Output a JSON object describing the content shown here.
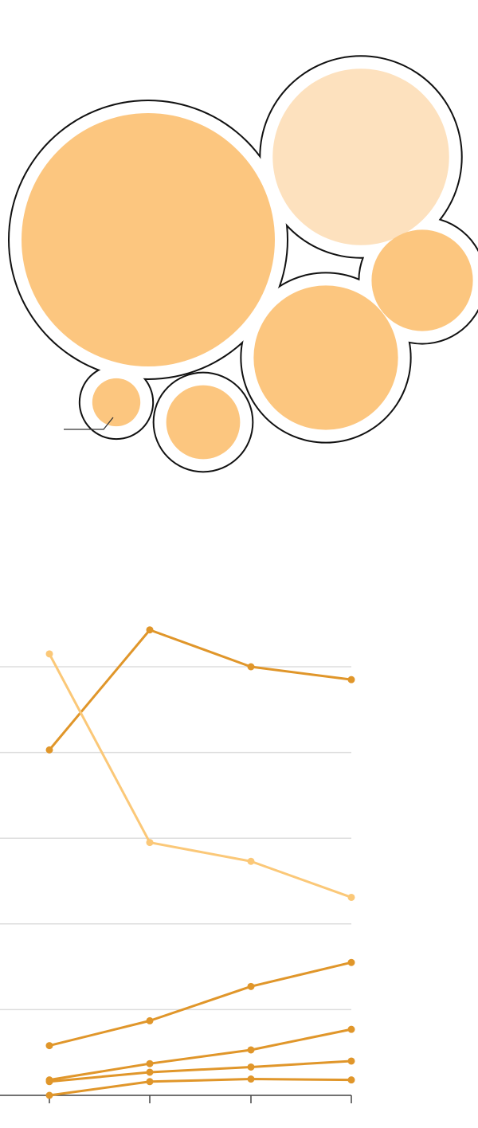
{
  "colors": {
    "bubble_main": "#FCC67F",
    "bubble_light": "#FDE1BE",
    "line_dark": "#E0962A",
    "line_light": "#FBC878",
    "outline": "#111111",
    "grid": "#DDDDDD",
    "axis": "#444444"
  },
  "chart_data": [
    {
      "type": "bubble",
      "title": "",
      "bubbles": [
        {
          "value": 100,
          "shade": "main"
        },
        {
          "value": 48.5,
          "shade": "light"
        },
        {
          "value": 32.5,
          "shade": "main"
        },
        {
          "value": 16,
          "shade": "main"
        },
        {
          "value": 8.5,
          "shade": "main"
        },
        {
          "value": 3.6,
          "shade": "main",
          "has_callout": true
        }
      ]
    },
    {
      "type": "line",
      "title": "",
      "xlabel": "",
      "ylabel": "",
      "categories": [
        "",
        "",
        "",
        ""
      ],
      "ylim": [
        0,
        5
      ],
      "grid": true,
      "series": [
        {
          "values": [
            4.03,
            5.43,
            5.0,
            4.85
          ],
          "shade": "dark"
        },
        {
          "values": [
            5.15,
            2.95,
            2.73,
            2.31
          ],
          "shade": "light"
        },
        {
          "values": [
            0.58,
            0.87,
            1.27,
            1.55
          ],
          "shade": "dark"
        },
        {
          "values": [
            0.18,
            0.37,
            0.53,
            0.77
          ],
          "shade": "dark"
        },
        {
          "values": [
            0.16,
            0.27,
            0.33,
            0.4
          ],
          "shade": "dark"
        },
        {
          "values": [
            0.0,
            0.16,
            0.19,
            0.18
          ],
          "shade": "dark"
        }
      ]
    }
  ]
}
